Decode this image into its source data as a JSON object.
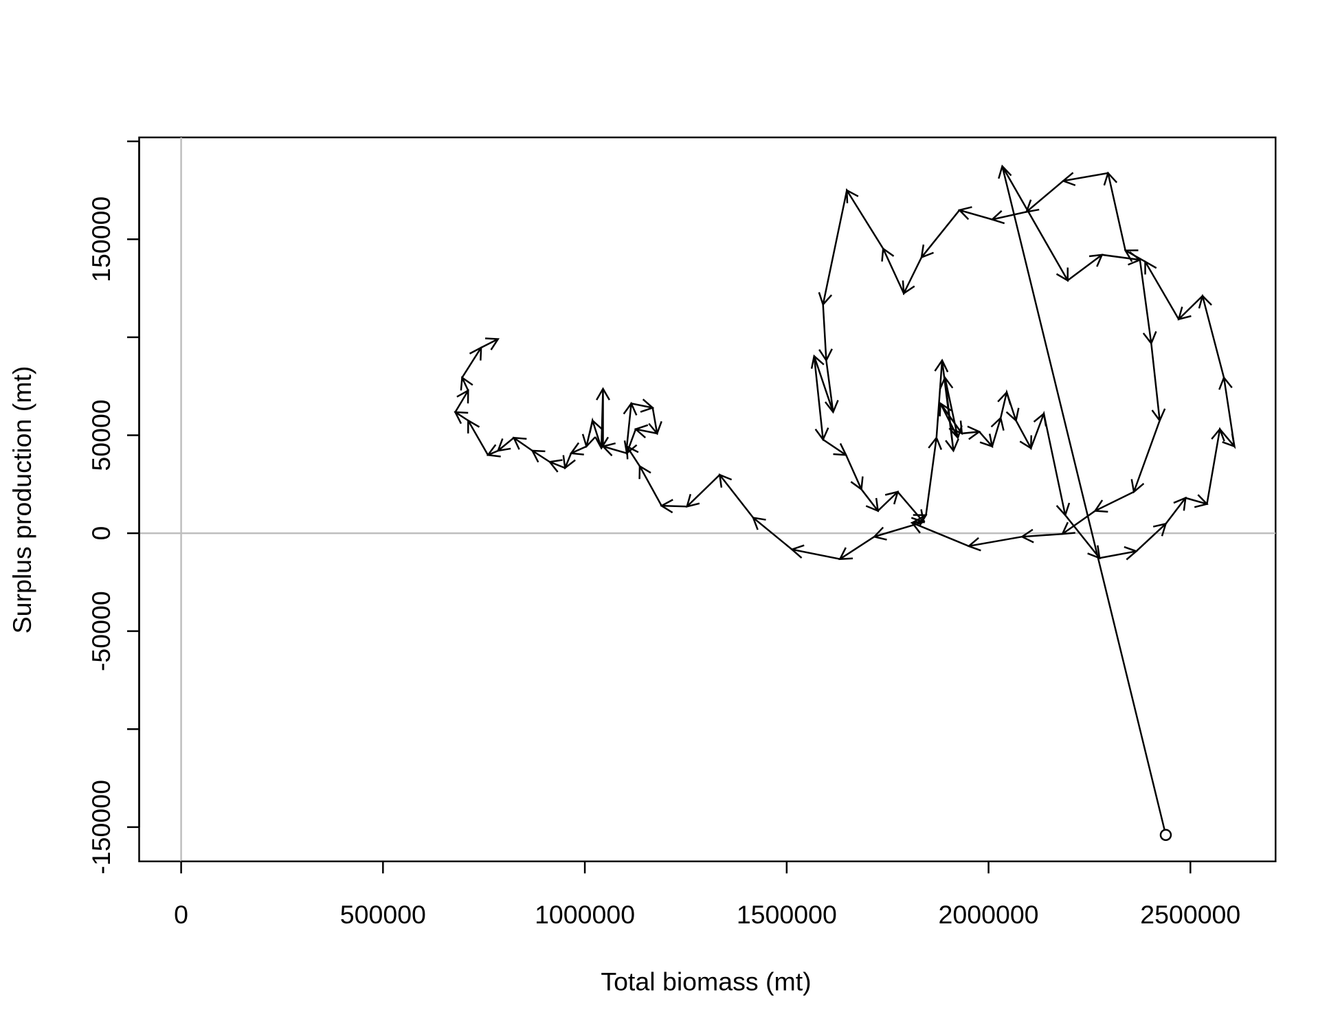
{
  "chart_data": {
    "type": "arrow-path",
    "xlabel": "Total biomass (mt)",
    "ylabel": "Surplus production (mt)",
    "x": [
      2439000,
      2034000,
      2196000,
      2281000,
      2375000,
      2403000,
      2424000,
      2360000,
      2264000,
      2183000,
      2083000,
      1951000,
      1811000,
      1845000,
      1871000,
      1885000,
      1913000,
      1892000,
      1924000,
      1881000,
      1934000,
      1977000,
      2009000,
      2030000,
      2045000,
      2068000,
      2105000,
      2137000,
      2190000,
      2275000,
      2366000,
      2439000,
      2488000,
      2541000,
      2573000,
      2609000,
      2583000,
      2530000,
      2471000,
      2388000,
      2339000,
      2296000,
      2185000,
      2094000,
      2009000,
      1928000,
      1834000,
      1790000,
      1739000,
      1649000,
      1590000,
      1598000,
      1615000,
      1568000,
      1590000,
      1647000,
      1685000,
      1726000,
      1775000,
      1839000,
      1717000,
      1632000,
      1513000,
      1417000,
      1334000,
      1253000,
      1190000,
      1136000,
      1104000,
      1115000,
      1168000,
      1179000,
      1126000,
      1104000,
      1045000,
      1045000,
      1041000,
      1019000,
      1004000,
      966000,
      951000,
      913000,
      870000,
      824000,
      785000,
      760000,
      711000,
      679000,
      711000,
      696000,
      743000,
      785000
    ],
    "values": [
      -154000,
      187300,
      129000,
      142100,
      139500,
      96900,
      57500,
      21100,
      11400,
      -400,
      -1800,
      -6600,
      5300,
      9200,
      48700,
      88200,
      42100,
      79400,
      48700,
      66200,
      50900,
      51800,
      44300,
      58800,
      71900,
      57500,
      43400,
      61000,
      9200,
      -12700,
      -9200,
      4800,
      18000,
      14900,
      53100,
      44300,
      79400,
      121100,
      109200,
      138600,
      144300,
      183800,
      179800,
      164000,
      160100,
      164900,
      140800,
      122400,
      145200,
      175000,
      116700,
      88200,
      61800,
      90400,
      47800,
      39900,
      22400,
      11400,
      21100,
      5700,
      -1800,
      -13200,
      -8300,
      7900,
      29800,
      13600,
      14000,
      34200,
      44300,
      66200,
      64000,
      50900,
      53100,
      40800,
      44300,
      73700,
      43400,
      57500,
      44300,
      40800,
      33300,
      36400,
      42100,
      48700,
      42100,
      39900,
      57500,
      61800,
      72800,
      79400,
      94700,
      99100
    ],
    "color": "#000000",
    "xlim": [
      -104000,
      2711000
    ],
    "ylim": [
      -167500,
      202000
    ],
    "xticks": [
      0,
      500000,
      1000000,
      1500000,
      2000000,
      2500000
    ],
    "yticks": [
      -150000,
      -50000,
      0,
      50000,
      150000
    ],
    "yminor_ticks": [
      -100000,
      100000,
      200000
    ],
    "reference_lines": {
      "x": 0,
      "y": 0,
      "color": "#bebebe"
    }
  }
}
